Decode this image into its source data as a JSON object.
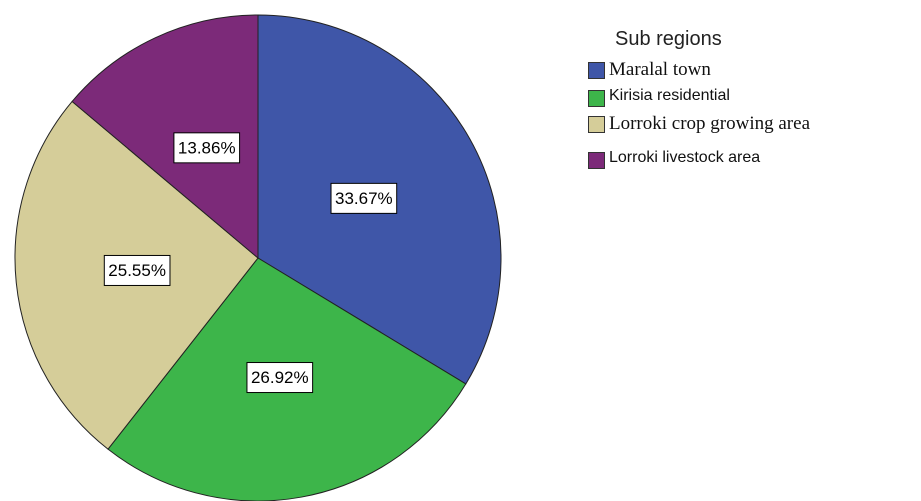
{
  "chart_data": {
    "type": "pie",
    "legend_title": "Sub regions",
    "categories": [
      "Maralal town",
      "Kirisia residential",
      "Lorroki  crop growing area",
      "Lorroki livestock area"
    ],
    "values": [
      33.67,
      26.92,
      25.55,
      13.86
    ],
    "value_labels": [
      "33.67%",
      "26.92%",
      "25.55%",
      "13.86%"
    ],
    "colors": [
      "#3f56a8",
      "#3db54a",
      "#d5cd99",
      "#7c2a79"
    ]
  }
}
